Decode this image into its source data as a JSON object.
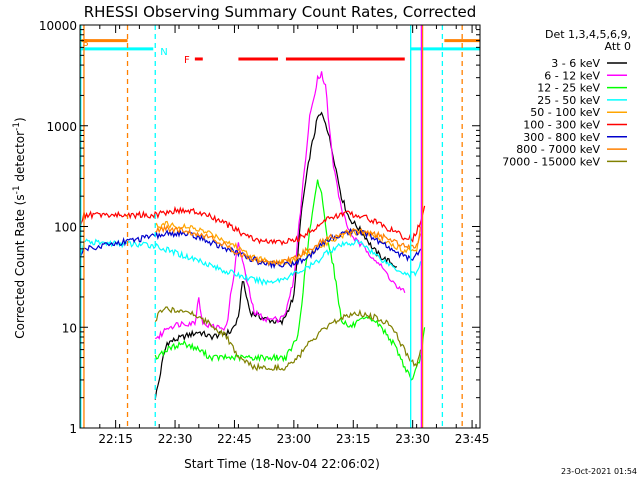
{
  "chart_data": {
    "type": "line",
    "title": "RHESSI Observing Summary Count Rates, Corrected",
    "xlabel": "Start Time (18-Nov-04 22:06:02)",
    "ylabel": "Corrected Count Rate (s⁻¹ detector⁻¹)",
    "ylabel_main": "Corrected Count Rate (s",
    "ylabel_sup1": "-1",
    "ylabel_mid": " detector",
    "ylabel_sup2": "-1",
    "ylabel_end": ")",
    "y_scale": "log",
    "xlim_minutes": [
      0,
      101
    ],
    "ylim": [
      1,
      10000
    ],
    "x_ticks": [
      {
        "label": "22:15",
        "minute": 9
      },
      {
        "label": "22:30",
        "minute": 24
      },
      {
        "label": "22:45",
        "minute": 39
      },
      {
        "label": "23:00",
        "minute": 54
      },
      {
        "label": "23:15",
        "minute": 69
      },
      {
        "label": "23:30",
        "minute": 84
      },
      {
        "label": "23:45",
        "minute": 99
      }
    ],
    "y_ticks": [
      {
        "label": "1",
        "value": 1
      },
      {
        "label": "10",
        "value": 10
      },
      {
        "label": "100",
        "value": 100
      },
      {
        "label": "1000",
        "value": 1000
      },
      {
        "label": "10000",
        "value": 10000
      }
    ],
    "legend_position": "right",
    "legend_header": [
      "Det 1,3,4,5,6,9,",
      "Att 0"
    ],
    "series": [
      {
        "name": "3 - 6 keV",
        "color": "#000000",
        "points": [
          [
            19,
            2
          ],
          [
            20,
            3
          ],
          [
            21,
            5
          ],
          [
            22,
            7
          ],
          [
            26,
            8
          ],
          [
            30,
            9
          ],
          [
            33,
            8
          ],
          [
            38,
            9
          ],
          [
            40,
            12
          ],
          [
            41,
            30
          ],
          [
            43,
            14
          ],
          [
            47,
            12
          ],
          [
            51,
            11
          ],
          [
            54,
            20
          ],
          [
            56,
            150
          ],
          [
            58,
            500
          ],
          [
            60,
            1200
          ],
          [
            61,
            1300
          ],
          [
            62,
            1100
          ],
          [
            64,
            500
          ],
          [
            66,
            200
          ],
          [
            68,
            120
          ],
          [
            70,
            100
          ],
          [
            72,
            80
          ],
          [
            74,
            60
          ],
          [
            76,
            50
          ],
          [
            78,
            45
          ],
          [
            80,
            40
          ]
        ]
      },
      {
        "name": "6 - 12 keV",
        "color": "#ff00ff",
        "points": [
          [
            19,
            8
          ],
          [
            20,
            8
          ],
          [
            22,
            10
          ],
          [
            26,
            11
          ],
          [
            29,
            11
          ],
          [
            30,
            20
          ],
          [
            31,
            11
          ],
          [
            34,
            10
          ],
          [
            37,
            10
          ],
          [
            38,
            20
          ],
          [
            40,
            70
          ],
          [
            42,
            30
          ],
          [
            44,
            14
          ],
          [
            47,
            12
          ],
          [
            50,
            12
          ],
          [
            52,
            14
          ],
          [
            54,
            30
          ],
          [
            56,
            200
          ],
          [
            58,
            1200
          ],
          [
            60,
            3000
          ],
          [
            61,
            3300
          ],
          [
            62,
            2500
          ],
          [
            63,
            900
          ],
          [
            64,
            400
          ],
          [
            66,
            150
          ],
          [
            68,
            90
          ],
          [
            70,
            70
          ],
          [
            72,
            60
          ],
          [
            74,
            50
          ],
          [
            76,
            40
          ],
          [
            78,
            32
          ],
          [
            80,
            25
          ],
          [
            82,
            22
          ]
        ]
      },
      {
        "name": "12 - 25 keV",
        "color": "#00ff00",
        "points": [
          [
            19,
            5
          ],
          [
            22,
            6
          ],
          [
            26,
            7
          ],
          [
            30,
            6
          ],
          [
            33,
            5
          ],
          [
            36,
            5
          ],
          [
            40,
            5
          ],
          [
            44,
            5
          ],
          [
            48,
            5
          ],
          [
            52,
            5
          ],
          [
            55,
            8
          ],
          [
            57,
            40
          ],
          [
            58,
            90
          ],
          [
            59,
            160
          ],
          [
            60,
            280
          ],
          [
            61,
            220
          ],
          [
            62,
            100
          ],
          [
            64,
            40
          ],
          [
            66,
            12
          ],
          [
            68,
            10
          ],
          [
            70,
            11
          ],
          [
            72,
            12
          ],
          [
            74,
            12
          ],
          [
            76,
            10
          ],
          [
            78,
            8
          ],
          [
            80,
            6
          ],
          [
            82,
            4
          ],
          [
            84,
            3
          ],
          [
            86,
            5
          ],
          [
            87,
            10
          ]
        ]
      },
      {
        "name": "25 - 50 keV",
        "color": "#00ffff",
        "points": [
          [
            0,
            50
          ],
          [
            1,
            70
          ],
          [
            19,
            65
          ],
          [
            21,
            60
          ],
          [
            24,
            55
          ],
          [
            27,
            50
          ],
          [
            31,
            45
          ],
          [
            35,
            38
          ],
          [
            39,
            34
          ],
          [
            43,
            30
          ],
          [
            47,
            28
          ],
          [
            51,
            30
          ],
          [
            54,
            34
          ],
          [
            57,
            38
          ],
          [
            60,
            45
          ],
          [
            62,
            55
          ],
          [
            64,
            60
          ],
          [
            66,
            65
          ],
          [
            68,
            68
          ],
          [
            70,
            70
          ],
          [
            72,
            65
          ],
          [
            74,
            55
          ],
          [
            77,
            45
          ],
          [
            80,
            38
          ],
          [
            83,
            33
          ],
          [
            85,
            35
          ],
          [
            86,
            45
          ]
        ]
      },
      {
        "name": "50 - 100 keV",
        "color": "#ffa500",
        "points": [
          [
            19,
            100
          ],
          [
            22,
            105
          ],
          [
            25,
            100
          ],
          [
            29,
            95
          ],
          [
            33,
            85
          ],
          [
            37,
            72
          ],
          [
            41,
            58
          ],
          [
            45,
            48
          ],
          [
            49,
            44
          ],
          [
            52,
            44
          ],
          [
            55,
            48
          ],
          [
            58,
            55
          ],
          [
            61,
            65
          ],
          [
            64,
            75
          ],
          [
            67,
            85
          ],
          [
            70,
            88
          ],
          [
            73,
            85
          ],
          [
            76,
            75
          ],
          [
            79,
            65
          ],
          [
            82,
            58
          ],
          [
            85,
            60
          ],
          [
            86,
            100
          ]
        ]
      },
      {
        "name": "100 - 300 keV",
        "color": "#ff0000",
        "points": [
          [
            0,
            100
          ],
          [
            1,
            130
          ],
          [
            19,
            130
          ],
          [
            22,
            140
          ],
          [
            25,
            145
          ],
          [
            29,
            140
          ],
          [
            33,
            125
          ],
          [
            37,
            105
          ],
          [
            41,
            85
          ],
          [
            45,
            72
          ],
          [
            49,
            70
          ],
          [
            52,
            70
          ],
          [
            55,
            75
          ],
          [
            57,
            85
          ],
          [
            59,
            95
          ],
          [
            61,
            110
          ],
          [
            64,
            125
          ],
          [
            67,
            135
          ],
          [
            70,
            130
          ],
          [
            73,
            120
          ],
          [
            76,
            105
          ],
          [
            79,
            90
          ],
          [
            82,
            78
          ],
          [
            84,
            75
          ],
          [
            86,
            110
          ],
          [
            87,
            160
          ]
        ]
      },
      {
        "name": "300 - 800 keV",
        "color": "#0000cc",
        "points": [
          [
            0,
            50
          ],
          [
            1,
            60
          ],
          [
            19,
            80
          ],
          [
            22,
            85
          ],
          [
            26,
            85
          ],
          [
            29,
            80
          ],
          [
            33,
            70
          ],
          [
            37,
            60
          ],
          [
            41,
            52
          ],
          [
            45,
            45
          ],
          [
            49,
            42
          ],
          [
            53,
            42
          ],
          [
            57,
            48
          ],
          [
            60,
            60
          ],
          [
            63,
            75
          ],
          [
            66,
            85
          ],
          [
            69,
            90
          ],
          [
            72,
            85
          ],
          [
            75,
            72
          ],
          [
            78,
            62
          ],
          [
            81,
            52
          ],
          [
            84,
            48
          ],
          [
            86,
            60
          ]
        ]
      },
      {
        "name": "800 - 7000 keV",
        "color": "#ff8000",
        "points": [
          [
            19,
            90
          ],
          [
            22,
            95
          ],
          [
            26,
            90
          ],
          [
            30,
            85
          ],
          [
            34,
            75
          ],
          [
            38,
            60
          ],
          [
            42,
            50
          ],
          [
            46,
            45
          ],
          [
            50,
            44
          ],
          [
            54,
            48
          ],
          [
            58,
            60
          ],
          [
            62,
            75
          ],
          [
            66,
            85
          ],
          [
            70,
            90
          ],
          [
            74,
            85
          ],
          [
            78,
            75
          ],
          [
            82,
            65
          ],
          [
            85,
            65
          ],
          [
            86,
            85
          ]
        ]
      },
      {
        "name": "7000 - 15000 keV",
        "color": "#808000",
        "points": [
          [
            19,
            11
          ],
          [
            20,
            14
          ],
          [
            22,
            15
          ],
          [
            25,
            15
          ],
          [
            28,
            14
          ],
          [
            31,
            12
          ],
          [
            34,
            10
          ],
          [
            37,
            8
          ],
          [
            40,
            5
          ],
          [
            44,
            4
          ],
          [
            48,
            4
          ],
          [
            52,
            4
          ],
          [
            55,
            5
          ],
          [
            58,
            7
          ],
          [
            61,
            9
          ],
          [
            64,
            11
          ],
          [
            67,
            13
          ],
          [
            70,
            14
          ],
          [
            73,
            13
          ],
          [
            76,
            12
          ],
          [
            79,
            10
          ],
          [
            81,
            7
          ],
          [
            83,
            5
          ],
          [
            85,
            4
          ],
          [
            86,
            6
          ]
        ]
      }
    ],
    "annotations": [
      {
        "text": "S",
        "color": "#ff8000",
        "minute": 0.3,
        "value": 6800
      },
      {
        "text": "N",
        "color": "#00ffff",
        "minute": 20,
        "value": 5500
      },
      {
        "text": "F",
        "color": "#ff0000",
        "minute": 26,
        "value": 4600
      }
    ],
    "state_bars": [
      {
        "label": "S",
        "color": "#ff8000",
        "segments": [
          [
            0,
            12
          ],
          [
            92,
            101
          ]
        ],
        "value": 7000
      },
      {
        "label": "N",
        "color": "#00ffff",
        "segments": [
          [
            0,
            18.5
          ],
          [
            83.5,
            101
          ]
        ],
        "value": 5800
      },
      {
        "label": "F",
        "color": "#ff0000",
        "segments": [
          [
            29,
            31
          ],
          [
            40,
            50
          ],
          [
            52,
            82
          ]
        ],
        "value": 4600
      }
    ],
    "vertical_markers": [
      {
        "color": "#ff8000",
        "style": "solid",
        "minute": 1
      },
      {
        "color": "#00ffff",
        "style": "solid",
        "minute": 0.2
      },
      {
        "color": "#ff8000",
        "style": "dashed",
        "minute": 12
      },
      {
        "color": "#00ffff",
        "style": "dashed",
        "minute": 19
      },
      {
        "color": "#00ffff",
        "style": "solid",
        "minute": 83.5
      },
      {
        "color": "#ff8000",
        "style": "solid",
        "minute": 86.5
      },
      {
        "color": "#ff00ff",
        "style": "solid",
        "minute": 86.2
      },
      {
        "color": "#00ffff",
        "style": "dashed",
        "minute": 91.5
      },
      {
        "color": "#ff8000",
        "style": "dashed",
        "minute": 96.5
      }
    ]
  },
  "footer": {
    "timestamp": "23-Oct-2021 01:54"
  }
}
